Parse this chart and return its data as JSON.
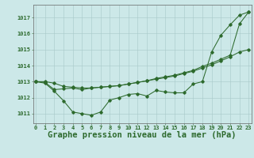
{
  "title": "Graphe pression niveau de la mer (hPa)",
  "bg_color": "#cce8e8",
  "line_color": "#2d6a2d",
  "marker_color": "#2d6a2d",
  "x_ticks": [
    0,
    1,
    2,
    3,
    4,
    5,
    6,
    7,
    8,
    9,
    10,
    11,
    12,
    13,
    14,
    15,
    16,
    17,
    18,
    19,
    20,
    21,
    22,
    23
  ],
  "y_ticks": [
    1011,
    1012,
    1013,
    1014,
    1015,
    1016,
    1017
  ],
  "ylim": [
    1010.4,
    1017.8
  ],
  "xlim": [
    -0.3,
    23.3
  ],
  "line1_x": [
    0,
    1,
    2,
    3,
    4,
    5,
    6,
    7,
    8,
    9,
    10,
    11,
    12,
    13,
    14,
    15,
    16,
    17,
    18,
    19,
    20,
    21,
    22,
    23
  ],
  "line1_y": [
    1013.0,
    1012.9,
    1012.4,
    1011.8,
    1011.1,
    1011.0,
    1010.9,
    1011.1,
    1011.85,
    1012.0,
    1012.2,
    1012.25,
    1012.1,
    1012.45,
    1012.35,
    1012.3,
    1012.3,
    1012.85,
    1013.0,
    1014.85,
    1015.9,
    1016.55,
    1017.15,
    1017.35
  ],
  "line2_x": [
    0,
    1,
    2,
    3,
    4,
    5,
    6,
    7,
    8,
    9,
    10,
    11,
    12,
    13,
    14,
    15,
    16,
    17,
    18,
    19,
    20,
    21,
    22,
    23
  ],
  "line2_y": [
    1013.0,
    1012.95,
    1012.5,
    1012.55,
    1012.6,
    1012.5,
    1012.6,
    1012.65,
    1012.7,
    1012.75,
    1012.85,
    1012.95,
    1013.05,
    1013.15,
    1013.25,
    1013.35,
    1013.5,
    1013.65,
    1013.85,
    1014.05,
    1014.3,
    1014.55,
    1014.85,
    1015.0
  ],
  "line3_x": [
    0,
    1,
    2,
    3,
    4,
    5,
    6,
    7,
    8,
    9,
    10,
    11,
    12,
    13,
    14,
    15,
    16,
    17,
    18,
    19,
    20,
    21,
    22,
    23
  ],
  "line3_y": [
    1013.0,
    1013.0,
    1012.9,
    1012.7,
    1012.65,
    1012.6,
    1012.6,
    1012.65,
    1012.7,
    1012.75,
    1012.85,
    1012.95,
    1013.05,
    1013.2,
    1013.3,
    1013.4,
    1013.55,
    1013.7,
    1013.95,
    1014.15,
    1014.4,
    1014.65,
    1016.6,
    1017.35
  ],
  "title_fontsize": 7.5,
  "tick_fontsize": 5.0
}
